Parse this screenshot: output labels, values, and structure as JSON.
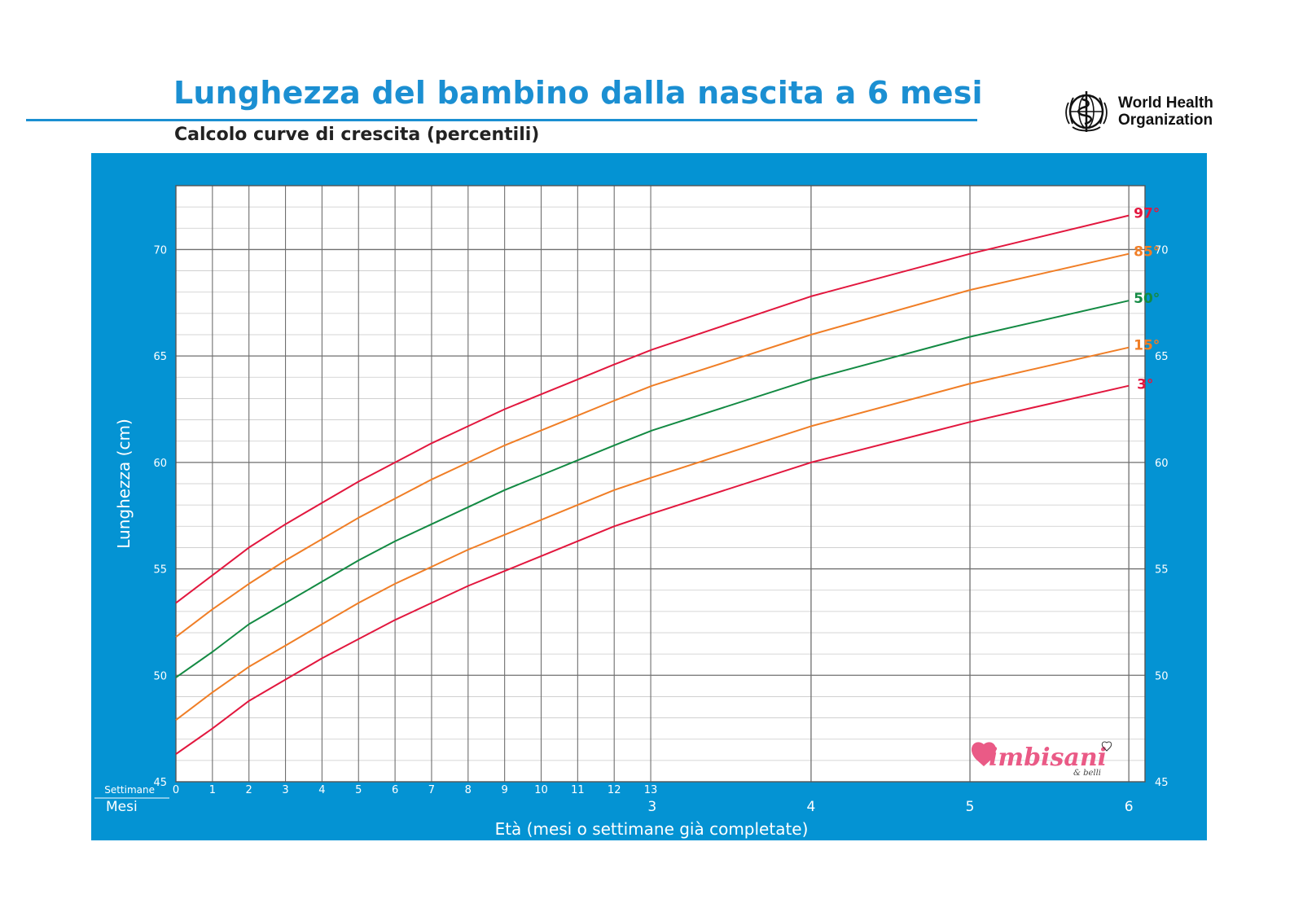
{
  "header": {
    "title": "Lunghezza del bambino dalla nascita a 6 mesi",
    "subtitle": "Calcolo curve di crescita (percentili)"
  },
  "logos": {
    "who_line1": "World Health",
    "who_line2": "Organization",
    "who_icon": "who-emblem-icon",
    "watermark_text": "bimbisani & belli",
    "watermark_icon": "heart-icon"
  },
  "colors": {
    "frame": "#0493d3",
    "title": "#1b8fd2",
    "p97": "#e2173e",
    "p85": "#f07e26",
    "p50": "#138a43",
    "p15": "#f07e26",
    "p3": "#e2173e"
  },
  "chart_data": {
    "type": "line",
    "xlabel": "Età (mesi o settimane già completate)",
    "ylabel": "Lunghezza (cm)",
    "x_unit_note": "x values are ages in weeks",
    "xlim": [
      0,
      26.1
    ],
    "ylim": [
      45,
      73
    ],
    "y_ticks": [
      45,
      50,
      55,
      60,
      65,
      70
    ],
    "week_axis_label": "Settimane",
    "week_ticks": [
      "0",
      "1",
      "2",
      "3",
      "4",
      "5",
      "6",
      "7",
      "8",
      "9",
      "10",
      "11",
      "12",
      "13"
    ],
    "month_axis_label": "Mesi",
    "month_ticks": [
      {
        "label": "3",
        "week": 13.04
      },
      {
        "label": "4",
        "week": 17.39
      },
      {
        "label": "5",
        "week": 21.74
      },
      {
        "label": "6",
        "week": 26.09
      }
    ],
    "x": [
      0,
      1,
      2,
      3,
      4,
      5,
      6,
      7,
      8,
      9,
      10,
      11,
      12,
      13.04,
      17.39,
      21.74,
      26.09
    ],
    "series": [
      {
        "name": "97°",
        "color": "#e2173e",
        "values": [
          53.4,
          54.7,
          56.0,
          57.1,
          58.1,
          59.1,
          60.0,
          60.9,
          61.7,
          62.5,
          63.2,
          63.9,
          64.6,
          65.3,
          67.8,
          69.8,
          71.6
        ]
      },
      {
        "name": "85°",
        "color": "#f07e26",
        "values": [
          51.8,
          53.1,
          54.3,
          55.4,
          56.4,
          57.4,
          58.3,
          59.2,
          60.0,
          60.8,
          61.5,
          62.2,
          62.9,
          63.6,
          66.0,
          68.1,
          69.8
        ]
      },
      {
        "name": "50°",
        "color": "#138a43",
        "values": [
          49.9,
          51.1,
          52.4,
          53.4,
          54.4,
          55.4,
          56.3,
          57.1,
          57.9,
          58.7,
          59.4,
          60.1,
          60.8,
          61.5,
          63.9,
          65.9,
          67.6
        ]
      },
      {
        "name": "15°",
        "color": "#f07e26",
        "values": [
          47.9,
          49.2,
          50.4,
          51.4,
          52.4,
          53.4,
          54.3,
          55.1,
          55.9,
          56.6,
          57.3,
          58.0,
          58.7,
          59.3,
          61.7,
          63.7,
          65.4
        ]
      },
      {
        "name": "3°",
        "color": "#e2173e",
        "values": [
          46.3,
          47.5,
          48.8,
          49.8,
          50.8,
          51.7,
          52.6,
          53.4,
          54.2,
          54.9,
          55.6,
          56.3,
          57.0,
          57.6,
          60.0,
          61.9,
          63.6
        ]
      }
    ]
  }
}
